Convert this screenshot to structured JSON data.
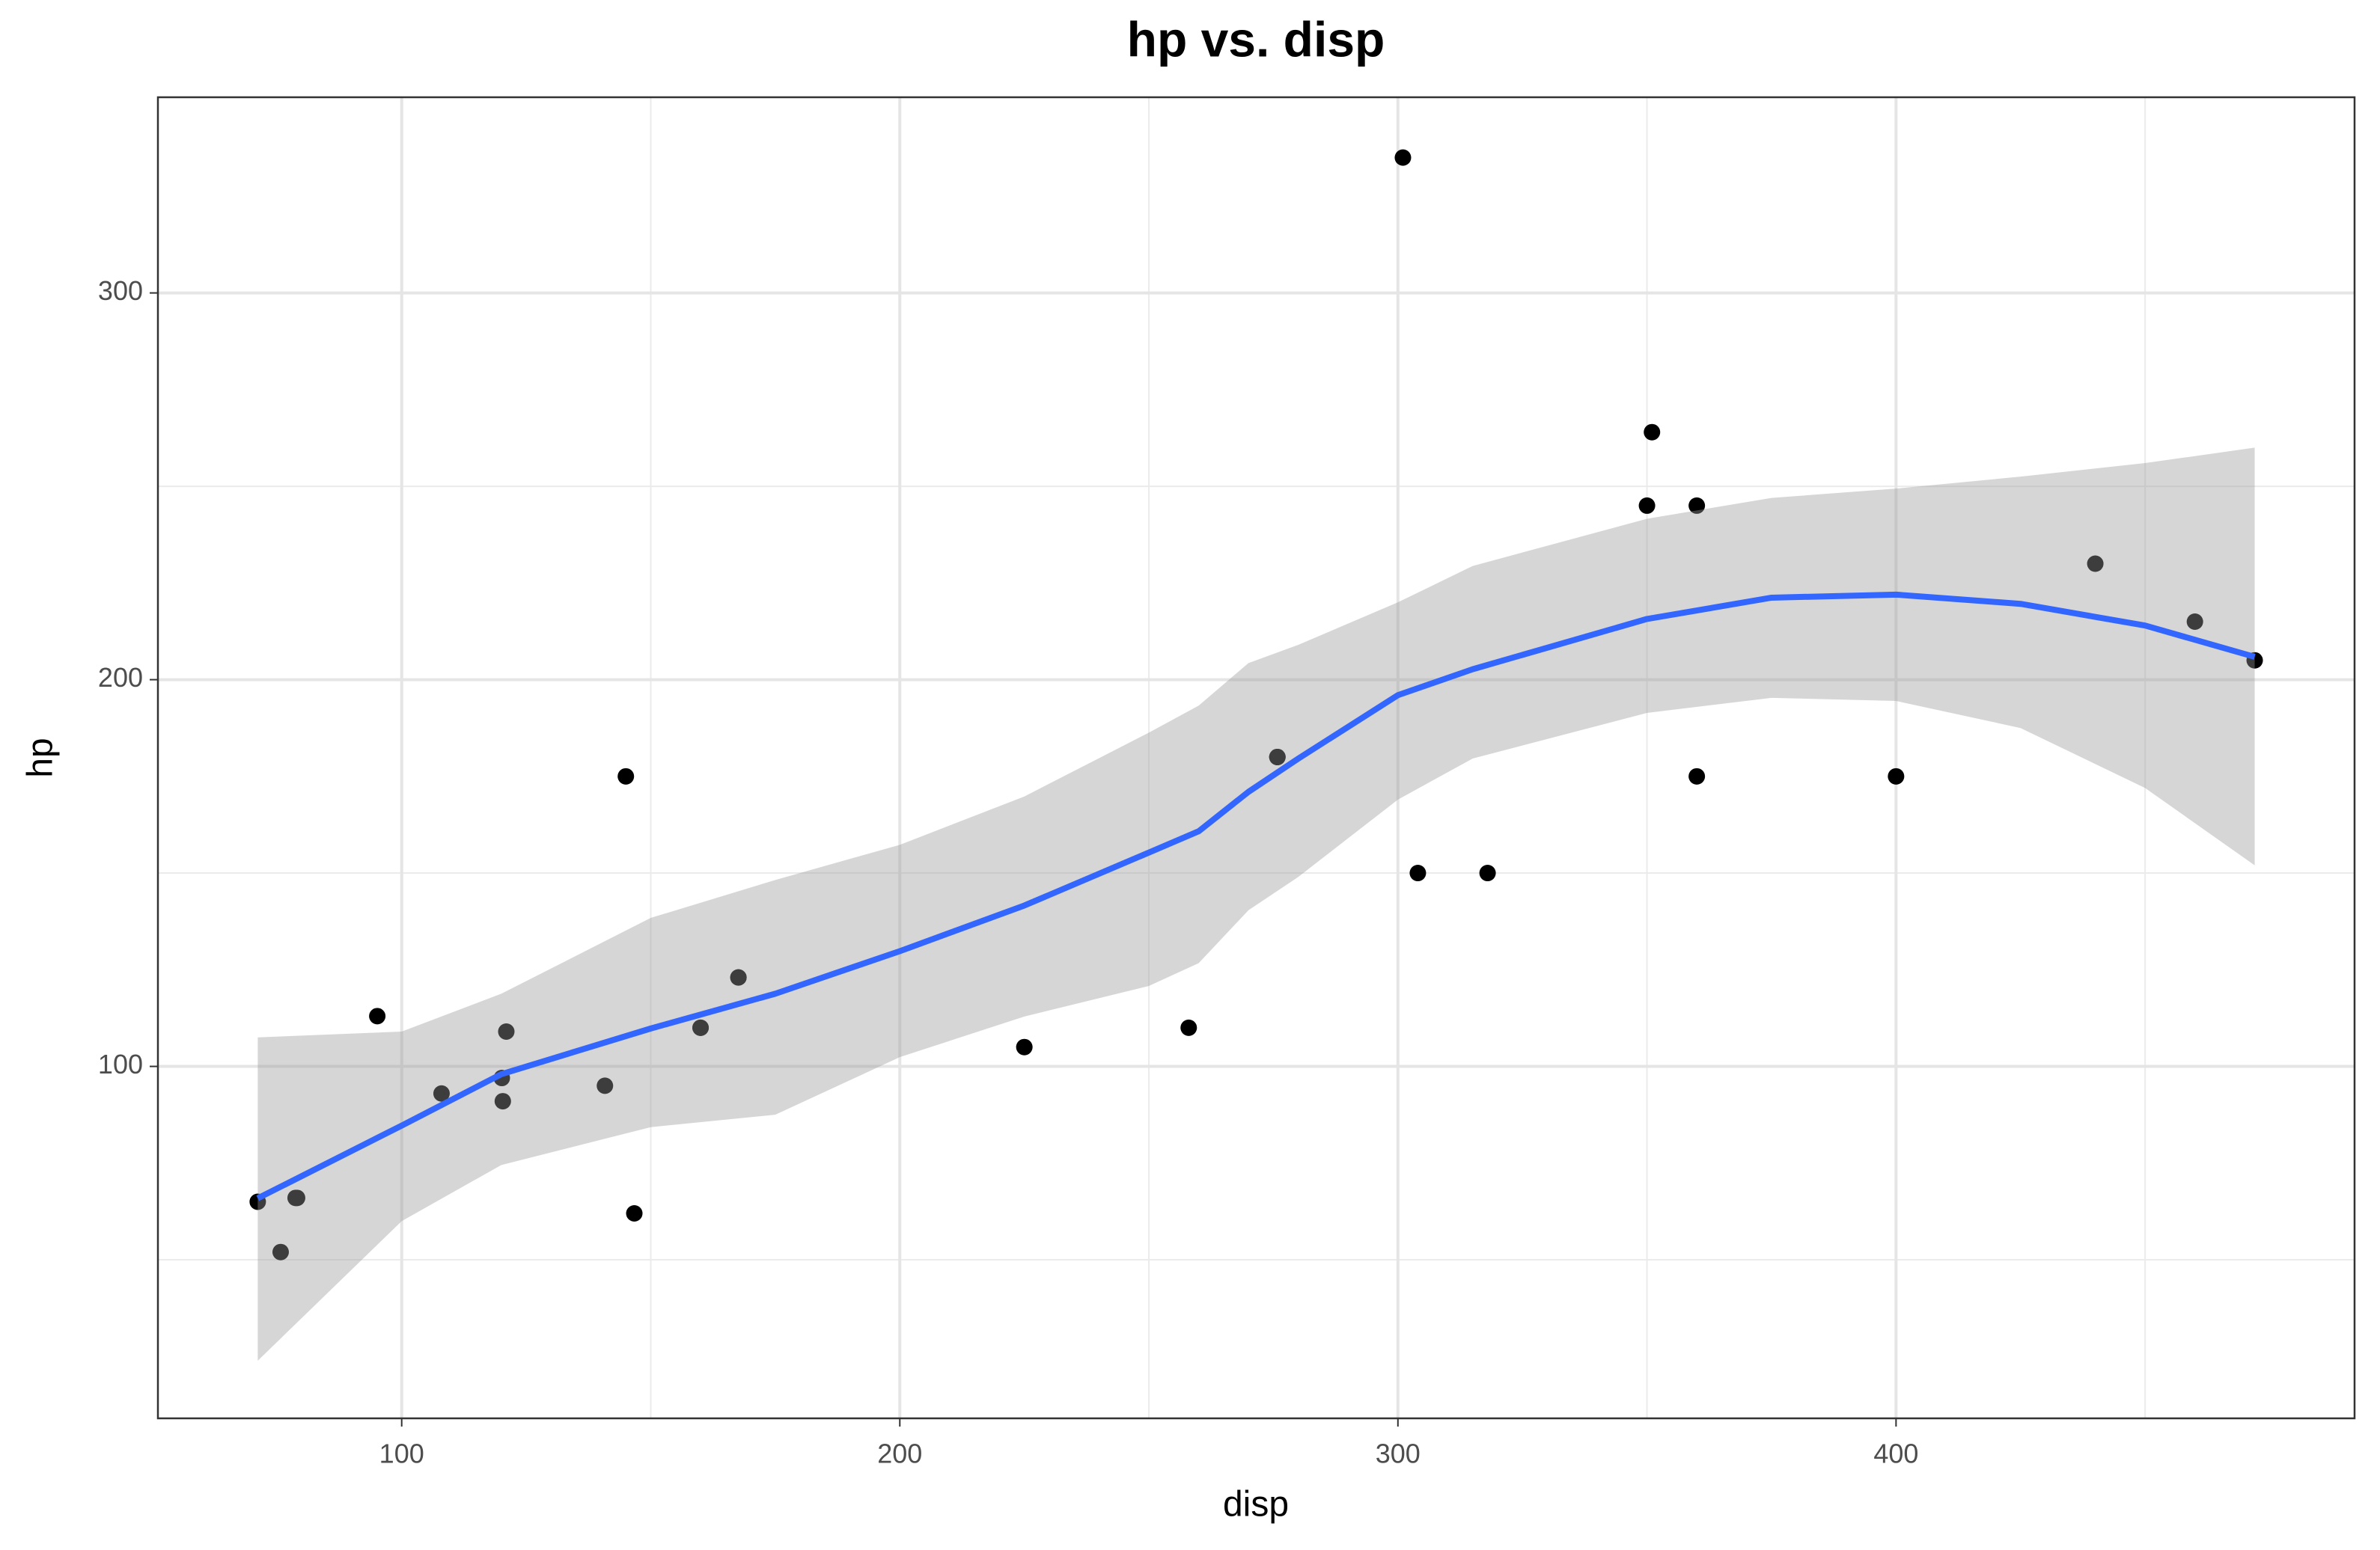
{
  "chart_data": {
    "type": "scatter",
    "title": "hp vs. disp",
    "x_label": "disp",
    "y_label": "hp",
    "xlim": [
      51.06,
      492.05
    ],
    "ylim": [
      9.0,
      350.6
    ],
    "xticks": [
      100,
      200,
      300,
      400
    ],
    "yticks": [
      100,
      200,
      300
    ],
    "xminor": [
      150,
      250,
      350,
      450
    ],
    "yminor": [
      50,
      150,
      250
    ],
    "grid": true,
    "points": {
      "color": "#000000",
      "x": [
        160,
        160,
        108,
        258,
        360,
        225,
        360,
        146.7,
        140.8,
        167.6,
        167.6,
        275.8,
        275.8,
        275.8,
        472,
        460,
        440,
        78.7,
        75.7,
        71.1,
        120.1,
        318,
        304,
        350,
        400,
        79,
        120.3,
        95.1,
        351,
        145,
        301,
        121
      ],
      "y": [
        110,
        110,
        93,
        110,
        175,
        105,
        245,
        62,
        95,
        123,
        123,
        180,
        180,
        180,
        205,
        215,
        230,
        66,
        52,
        65,
        97,
        150,
        150,
        245,
        175,
        66,
        91,
        113,
        264,
        175,
        335,
        109
      ]
    },
    "smooth": {
      "color": "#3366ff",
      "fill": "#999999",
      "x": [
        71.1,
        100,
        120,
        150,
        175,
        200,
        225,
        250,
        260,
        270,
        280,
        300,
        315,
        350,
        375,
        400,
        425,
        450,
        472
      ],
      "y": [
        65.9,
        84.7,
        98,
        109.8,
        118.8,
        129.8,
        141.6,
        155.3,
        160.8,
        171,
        179.6,
        196,
        202.7,
        215.7,
        221.2,
        222,
        219.6,
        214,
        205.9
      ],
      "ymin": [
        23.9,
        60,
        74.5,
        84.3,
        87.5,
        102.4,
        112.9,
        120.8,
        126.7,
        140.4,
        149,
        169,
        179.6,
        191.4,
        195.3,
        194.5,
        187.5,
        172,
        152
      ],
      "ymax": [
        107.5,
        109,
        118.8,
        138.4,
        148.2,
        157.3,
        169.8,
        186.3,
        193.3,
        204.3,
        209,
        220,
        229.4,
        241.6,
        247,
        249.4,
        252.5,
        256,
        260
      ]
    }
  }
}
